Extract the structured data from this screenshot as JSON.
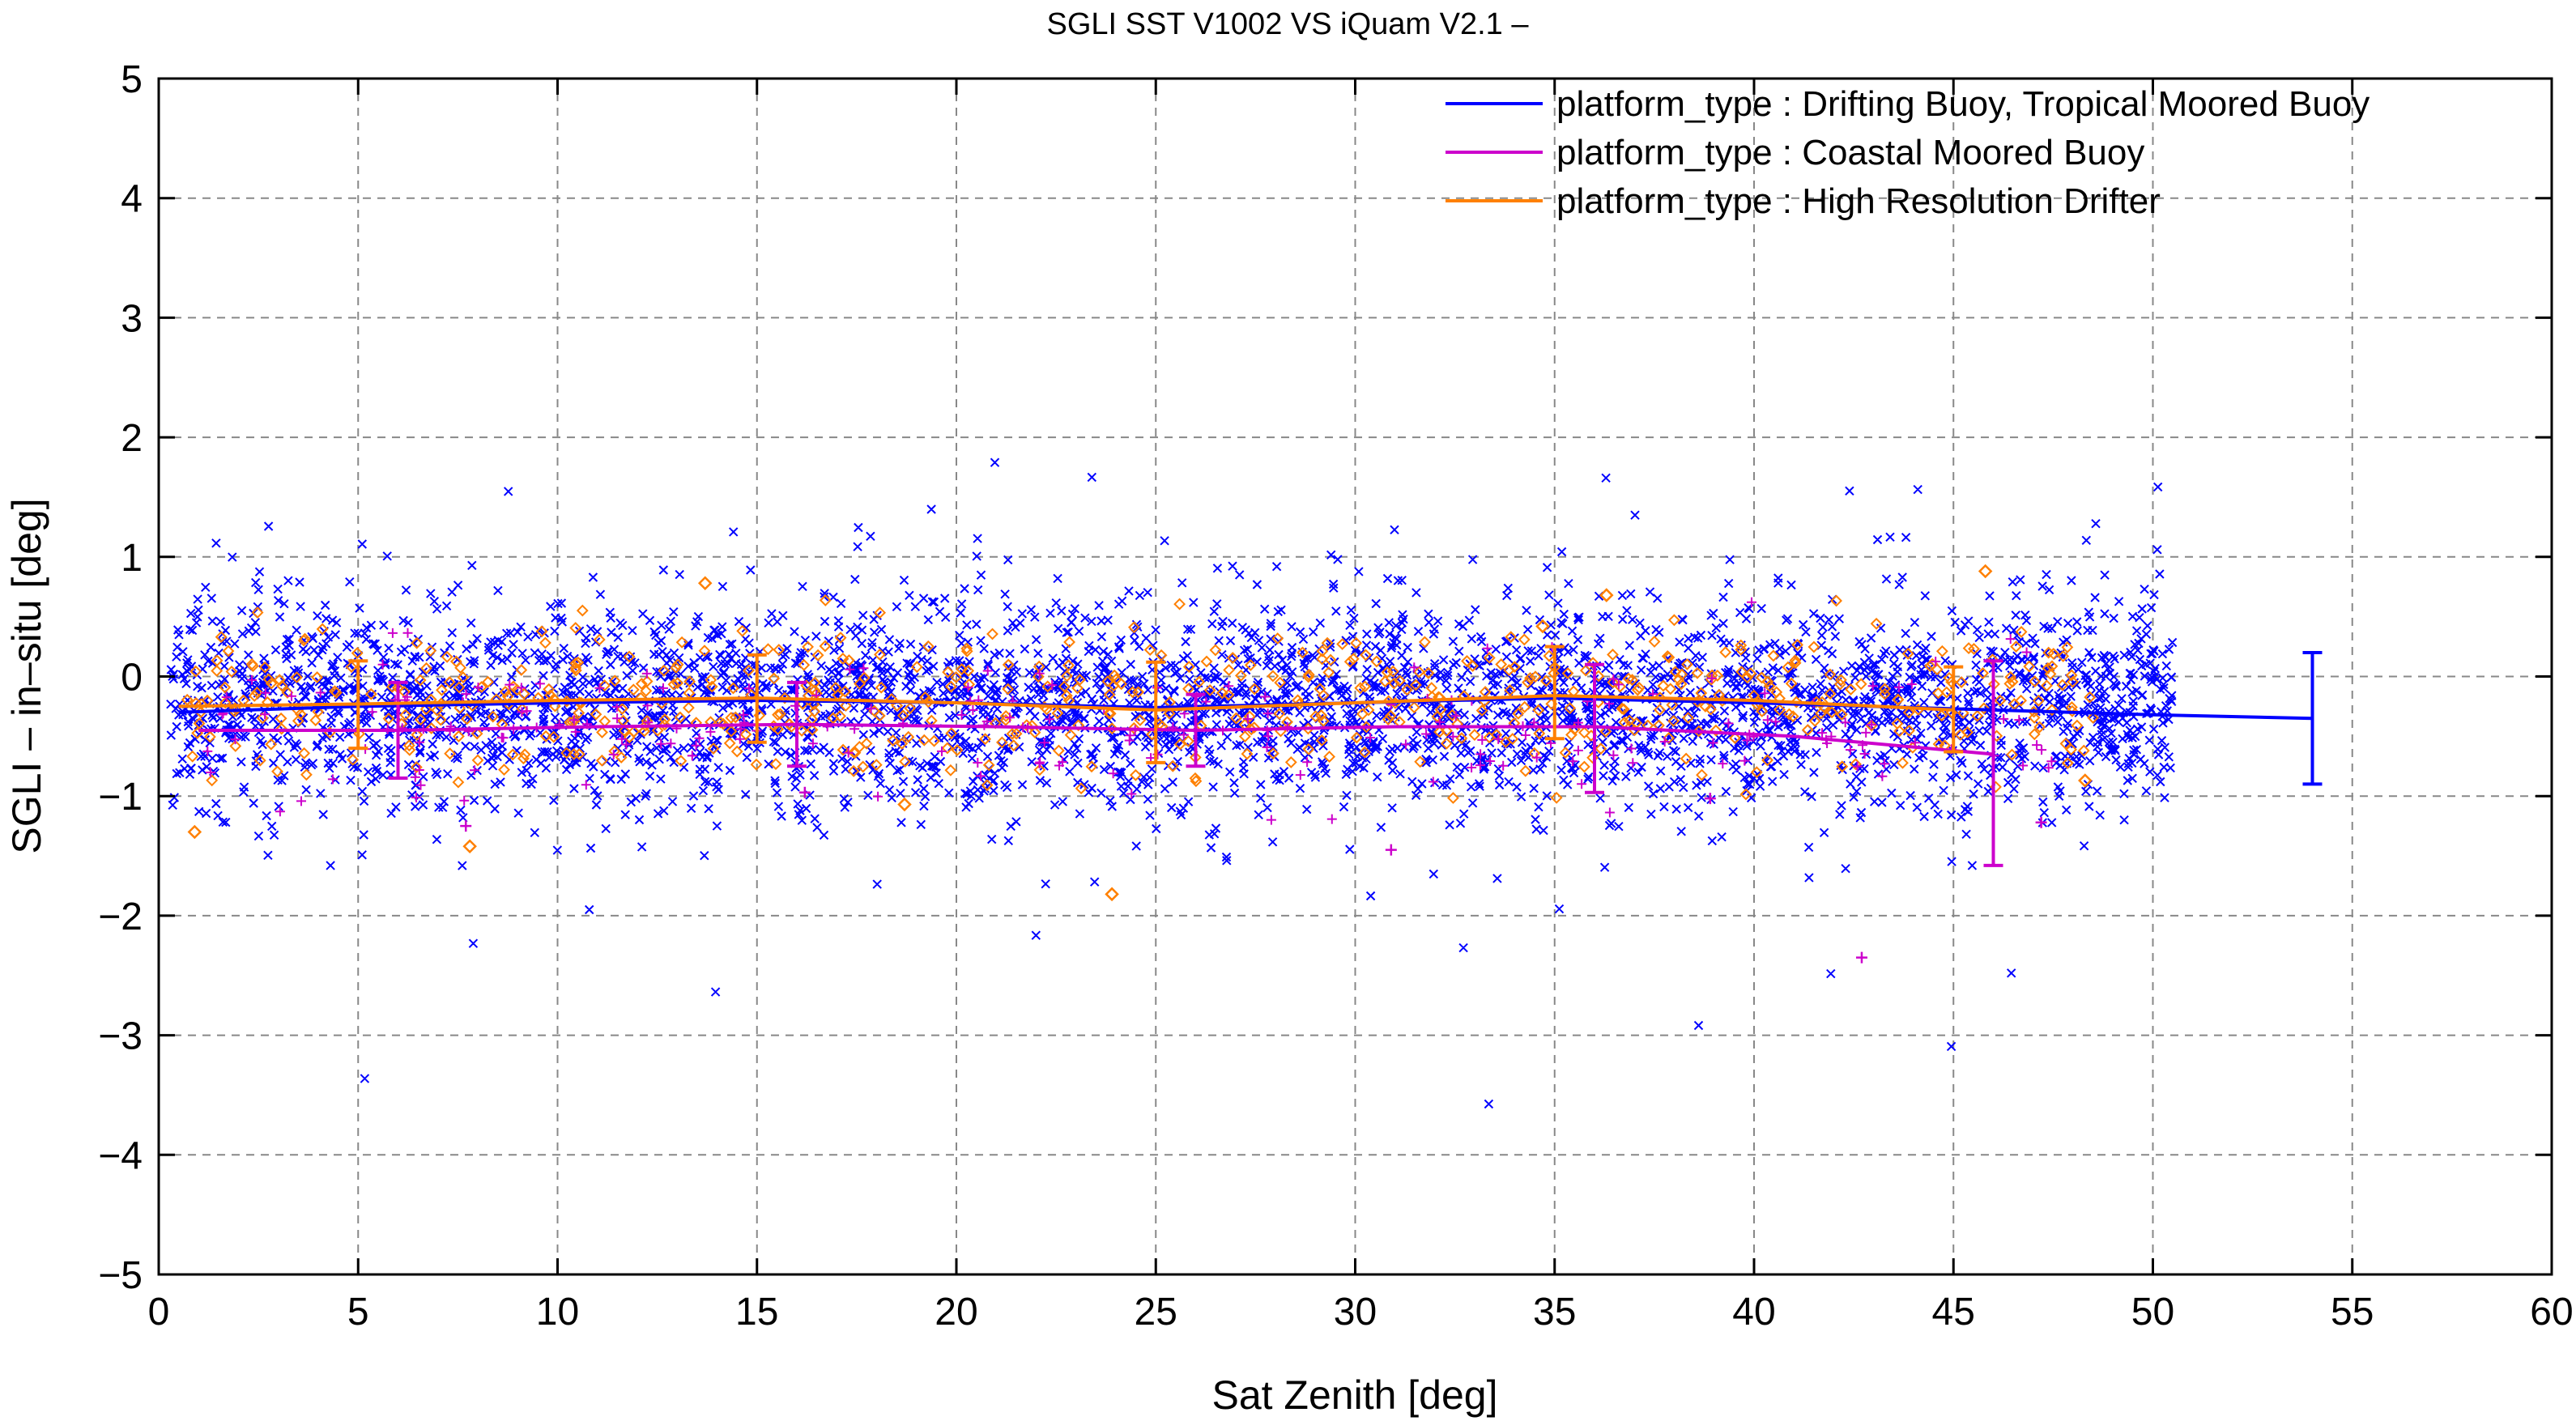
{
  "chart_data": {
    "type": "scatter",
    "title": "SGLI SST V1002 VS iQuam V2.1  –",
    "xlabel": "Sat Zenith [deg]",
    "ylabel": "SGLI – in–situ [deg]",
    "xlim": [
      0,
      60
    ],
    "ylim": [
      -5,
      5
    ],
    "x_ticks": [
      "0",
      "5",
      "10",
      "15",
      "20",
      "25",
      "30",
      "35",
      "40",
      "45",
      "50",
      "55",
      "60"
    ],
    "y_ticks": [
      "5",
      "4",
      "3",
      "2",
      "1",
      "0",
      "−1",
      "−2",
      "−3",
      "−4",
      "−5"
    ],
    "grid": true,
    "legend_position": "top-right",
    "series": [
      {
        "name": "platform_type : Drifting Buoy, Tropical Moored Buoy",
        "color": "#0000ff",
        "marker": "x",
        "scatter_x_range": [
          0.3,
          50.5
        ],
        "scatter_approx_count": 6500,
        "scatter_approx_mean": -0.25,
        "scatter_approx_sd": 0.42,
        "mean_line": {
          "x": [
            0.5,
            5,
            10,
            15,
            20,
            25,
            30,
            35,
            40,
            45,
            50,
            54
          ],
          "y": [
            -0.3,
            -0.25,
            -0.22,
            -0.2,
            -0.22,
            -0.26,
            -0.22,
            -0.18,
            -0.22,
            -0.27,
            -0.32,
            -0.35
          ]
        },
        "error_bars": [
          {
            "x": 54,
            "mean": -0.35,
            "low": -0.9,
            "high": 0.2
          }
        ]
      },
      {
        "name": "platform_type : Coastal Moored Buoy",
        "color": "#cc00cc",
        "marker": "+",
        "mean_line": {
          "x": [
            1,
            6,
            11,
            16,
            21,
            26,
            31,
            36,
            41,
            46
          ],
          "y": [
            -0.45,
            -0.45,
            -0.42,
            -0.4,
            -0.42,
            -0.45,
            -0.42,
            -0.42,
            -0.5,
            -0.65
          ]
        },
        "error_bars": [
          {
            "x": 6,
            "mean": -0.45,
            "low": -0.85,
            "high": -0.05
          },
          {
            "x": 16,
            "mean": -0.4,
            "low": -0.75,
            "high": -0.05
          },
          {
            "x": 26,
            "mean": -0.45,
            "low": -0.75,
            "high": -0.15
          },
          {
            "x": 36,
            "mean": -0.42,
            "low": -0.97,
            "high": 0.1
          },
          {
            "x": 46,
            "mean": -0.65,
            "low": -1.58,
            "high": 0.13
          }
        ],
        "outliers": [
          {
            "x": 7.7,
            "y": -1.25
          },
          {
            "x": 30.9,
            "y": -1.45
          },
          {
            "x": 38.9,
            "y": -1.02
          },
          {
            "x": 42.7,
            "y": -2.35
          },
          {
            "x": 47.2,
            "y": -1.22
          },
          {
            "x": 16.2,
            "y": -0.97
          }
        ]
      },
      {
        "name": "platform_type : High Resolution Drifter",
        "color": "#ff8000",
        "marker": "diamond",
        "mean_line": {
          "x": [
            0.5,
            5,
            10,
            15,
            20,
            25,
            30,
            35,
            40,
            45
          ],
          "y": [
            -0.25,
            -0.23,
            -0.2,
            -0.18,
            -0.22,
            -0.28,
            -0.22,
            -0.16,
            -0.2,
            -0.28
          ]
        },
        "error_bars": [
          {
            "x": 5,
            "mean": -0.23,
            "low": -0.6,
            "high": 0.13
          },
          {
            "x": 15,
            "mean": -0.18,
            "low": -0.55,
            "high": 0.18
          },
          {
            "x": 25,
            "mean": -0.28,
            "low": -0.72,
            "high": 0.12
          },
          {
            "x": 35,
            "mean": -0.16,
            "low": -0.52,
            "high": 0.25
          },
          {
            "x": 45,
            "mean": -0.28,
            "low": -0.63,
            "high": 0.08
          }
        ],
        "outliers": [
          {
            "x": 13.7,
            "y": 0.78
          },
          {
            "x": 0.9,
            "y": -1.3
          },
          {
            "x": 7.8,
            "y": -1.42
          },
          {
            "x": 23.9,
            "y": -1.82
          },
          {
            "x": 18.7,
            "y": -1.07
          },
          {
            "x": 48.3,
            "y": -0.87
          },
          {
            "x": 36.3,
            "y": 0.68
          },
          {
            "x": 45.8,
            "y": 0.88
          },
          {
            "x": 34.7,
            "y": 0.42
          }
        ]
      }
    ]
  }
}
